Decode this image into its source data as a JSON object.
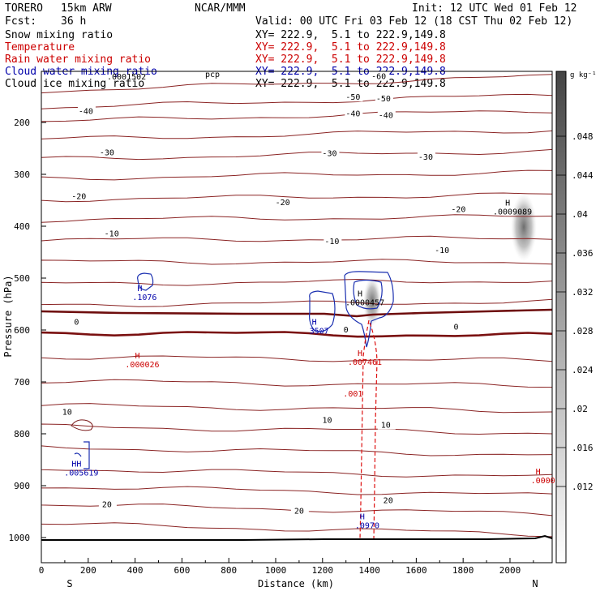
{
  "header": {
    "model": "TORERO",
    "resolution": "15km ARW",
    "center": "NCAR/MMM",
    "init": "Init: 12 UTC Wed 01 Feb 12",
    "fcst_label": "Fcst:",
    "fcst_value": "36 h",
    "valid": "Valid: 00 UTC Fri 03 Feb 12 (18 CST Thu 02 Feb 12)"
  },
  "legend": [
    {
      "name": "Snow mixing ratio",
      "color": "#000000",
      "xy": "XY= 222.9,  5.1 to 222.9,149.8"
    },
    {
      "name": "Temperature",
      "color": "#cc0000",
      "xy": "XY= 222.9,  5.1 to 222.9,149.8"
    },
    {
      "name": "Rain water mixing ratio",
      "color": "#cc0000",
      "xy": "XY= 222.9,  5.1 to 222.9,149.8"
    },
    {
      "name": "Cloud water mixing ratio",
      "color": "#0000aa",
      "xy": "XY= 222.9,  5.1 to 222.9,149.8"
    },
    {
      "name": "Cloud ice mixing ratio",
      "color": "#000000",
      "xy": "XY= 222.9,  5.1 to 222.9,149.8"
    }
  ],
  "overlay_text": {
    "hidden_label": ".0001502",
    "hidden_label_b": "pcp"
  },
  "chart_data": {
    "type": "contour-cross-section",
    "xlabel": "Distance (km)",
    "ylabel": "Pressure (hPa)",
    "xlim": [
      0,
      2180
    ],
    "ylim": [
      1050,
      100
    ],
    "x_ticks": [
      0,
      200,
      400,
      600,
      800,
      1000,
      1200,
      1400,
      1600,
      1800,
      2000
    ],
    "y_ticks": [
      200,
      300,
      400,
      500,
      600,
      700,
      800,
      900,
      1000
    ],
    "end_labels": {
      "left": "S",
      "right": "N"
    },
    "colorbar": {
      "unit": "g kg⁻¹",
      "ticks": [
        ".048",
        ".044",
        ".04",
        ".036",
        ".032",
        ".028",
        ".024",
        ".02",
        ".016",
        ".012"
      ]
    },
    "temperature_labels": [
      {
        "text": "-60",
        "x": 1440,
        "p": 115
      },
      {
        "text": "-50",
        "x": 1330,
        "p": 155
      },
      {
        "text": "-50",
        "x": 1460,
        "p": 158
      },
      {
        "text": "-40",
        "x": 190,
        "p": 182
      },
      {
        "text": "-40",
        "x": 1330,
        "p": 187
      },
      {
        "text": "-40",
        "x": 1470,
        "p": 190
      },
      {
        "text": "-30",
        "x": 280,
        "p": 262
      },
      {
        "text": "-30",
        "x": 1230,
        "p": 263
      },
      {
        "text": "-30",
        "x": 1640,
        "p": 270
      },
      {
        "text": "-20",
        "x": 160,
        "p": 346
      },
      {
        "text": "-20",
        "x": 1030,
        "p": 358
      },
      {
        "text": "-20",
        "x": 1780,
        "p": 371
      },
      {
        "text": "-10",
        "x": 300,
        "p": 418
      },
      {
        "text": "-10",
        "x": 1240,
        "p": 433
      },
      {
        "text": "-10",
        "x": 1710,
        "p": 450
      },
      {
        "text": "0",
        "x": 150,
        "p": 588
      },
      {
        "text": "0",
        "x": 1300,
        "p": 603
      },
      {
        "text": "0",
        "x": 1770,
        "p": 598
      },
      {
        "text": "10",
        "x": 110,
        "p": 762
      },
      {
        "text": "10",
        "x": 1220,
        "p": 777
      },
      {
        "text": "10",
        "x": 1470,
        "p": 787
      },
      {
        "text": "20",
        "x": 280,
        "p": 940
      },
      {
        "text": "20",
        "x": 1100,
        "p": 952
      },
      {
        "text": "20",
        "x": 1480,
        "p": 932
      }
    ],
    "maxima": [
      {
        "text": "H",
        "value": ".1076",
        "x": 420,
        "p": 525,
        "color": "#0000aa"
      },
      {
        "text": "H",
        "value": "3507",
        "x": 1165,
        "p": 590,
        "color": "#0000aa"
      },
      {
        "text": "H",
        "value": ".0000457",
        "x": 1360,
        "p": 535,
        "color": "#000000"
      },
      {
        "text": "H",
        "value": ".0009089",
        "x": 1990,
        "p": 360,
        "color": "#000000"
      },
      {
        "text": "H",
        "value": ".000026",
        "x": 410,
        "p": 655,
        "color": "#cc0000"
      },
      {
        "text": "H",
        "value": ".007461",
        "x": 1360,
        "p": 650,
        "color": "#cc0000"
      },
      {
        "text": "HH",
        "value": ".005619",
        "x": 150,
        "p": 863,
        "color": "#0000aa"
      },
      {
        "text": "H",
        "value": ".0000",
        "x": 2120,
        "p": 878,
        "color": "#cc0000"
      },
      {
        "text": "H",
        "value": ".0970",
        "x": 1370,
        "p": 965,
        "color": "#0000aa"
      }
    ],
    "rain_labels": [
      {
        "text": ".001",
        "x": 1330,
        "p": 728
      }
    ]
  }
}
